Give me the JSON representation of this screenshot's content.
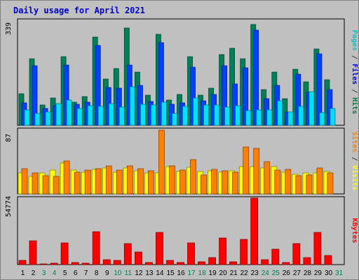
{
  "title": "Daily usage for April 2021",
  "chart_data": [
    {
      "type": "bar",
      "panel": "pages-files-hits",
      "x": [
        1,
        2,
        3,
        4,
        5,
        6,
        7,
        8,
        9,
        10,
        11,
        12,
        13,
        14,
        15,
        16,
        17,
        18,
        19,
        20,
        21,
        22,
        23,
        24,
        25,
        26,
        27,
        28,
        29,
        30,
        31
      ],
      "ymax_label": "339",
      "ylim": [
        0,
        339
      ],
      "axis_labels": [
        {
          "text": "Pages",
          "color": "#00c8c8"
        },
        {
          "text": " / ",
          "color": "#404040"
        },
        {
          "text": "Files",
          "color": "#0000ff"
        },
        {
          "text": " / ",
          "color": "#404040"
        },
        {
          "text": "Hits",
          "color": "#008040"
        }
      ],
      "series": [
        {
          "key": "hits",
          "color": "#00805a",
          "values": [
            103,
            217,
            66,
            90,
            224,
            76,
            95,
            288,
            152,
            186,
            318,
            175,
            99,
            298,
            82,
            100,
            224,
            98,
            121,
            231,
            252,
            217,
            330,
            117,
            173,
            86,
            183,
            141,
            250,
            148,
            0
          ]
        },
        {
          "key": "files",
          "color": "#0040ff",
          "values": [
            73,
            194,
            56,
            65,
            198,
            68,
            75,
            260,
            124,
            122,
            197,
            131,
            79,
            271,
            69,
            73,
            191,
            80,
            100,
            194,
            134,
            188,
            312,
            87,
            130,
            44,
            168,
            108,
            234,
            117,
            0
          ]
        },
        {
          "key": "pages",
          "color": "#00e0ff",
          "values": [
            51,
            39,
            44,
            70,
            82,
            56,
            63,
            61,
            72,
            59,
            125,
            69,
            67,
            76,
            38,
            62,
            89,
            67,
            67,
            59,
            63,
            47,
            51,
            50,
            80,
            44,
            61,
            111,
            42,
            55,
            0
          ]
        }
      ]
    },
    {
      "type": "bar",
      "panel": "sites-visits",
      "x": [
        1,
        2,
        3,
        4,
        5,
        6,
        7,
        8,
        9,
        10,
        11,
        12,
        13,
        14,
        15,
        16,
        17,
        18,
        19,
        20,
        21,
        22,
        23,
        24,
        25,
        26,
        27,
        28,
        29,
        30,
        31
      ],
      "ymax_label": "87",
      "ylim": [
        0,
        87
      ],
      "axis_labels": [
        {
          "text": "Sites",
          "color": "#ff8000"
        },
        {
          "text": " / ",
          "color": "#404040"
        },
        {
          "text": "Visits",
          "color": "#ffff00"
        }
      ],
      "series": [
        {
          "key": "visits",
          "color": "#ffff00",
          "values": [
            29,
            24,
            29,
            33,
            43,
            33,
            30,
            34,
            36,
            30,
            36,
            32,
            29,
            29,
            38,
            31,
            37,
            31,
            32,
            30,
            32,
            38,
            38,
            36,
            38,
            30,
            27,
            29,
            29,
            31,
            0
          ]
        },
        {
          "key": "sites",
          "color": "#ff8000",
          "values": [
            35,
            29,
            25,
            24,
            45,
            30,
            33,
            35,
            39,
            33,
            39,
            35,
            32,
            88,
            39,
            33,
            47,
            26,
            34,
            32,
            30,
            65,
            63,
            44,
            33,
            34,
            25,
            26,
            36,
            29,
            0
          ]
        }
      ]
    },
    {
      "type": "bar",
      "panel": "kbytes",
      "x": [
        1,
        2,
        3,
        4,
        5,
        6,
        7,
        8,
        9,
        10,
        11,
        12,
        13,
        14,
        15,
        16,
        17,
        18,
        19,
        20,
        21,
        22,
        23,
        24,
        25,
        26,
        27,
        28,
        29,
        30,
        31
      ],
      "ymax_label": "54774",
      "ylim": [
        0,
        54774
      ],
      "axis_labels": [
        {
          "text": "KBytes",
          "color": "#ff0000"
        }
      ],
      "series": [
        {
          "key": "kbytes",
          "color": "#ff0000",
          "values": [
            3800,
            20000,
            850,
            1300,
            18000,
            1900,
            1200,
            27500,
            4400,
            3800,
            17500,
            10500,
            1900,
            27000,
            3400,
            1700,
            18000,
            2400,
            6000,
            22500,
            2100,
            21000,
            56000,
            4400,
            13000,
            1900,
            17500,
            5900,
            27000,
            7800,
            0
          ]
        }
      ]
    }
  ],
  "x_labels": [
    {
      "day": "1",
      "weekend": false
    },
    {
      "day": "2",
      "weekend": false
    },
    {
      "day": "3",
      "weekend": true
    },
    {
      "day": "4",
      "weekend": true
    },
    {
      "day": "5",
      "weekend": false
    },
    {
      "day": "6",
      "weekend": false
    },
    {
      "day": "7",
      "weekend": false
    },
    {
      "day": "8",
      "weekend": false
    },
    {
      "day": "9",
      "weekend": false
    },
    {
      "day": "10",
      "weekend": true
    },
    {
      "day": "11",
      "weekend": true
    },
    {
      "day": "12",
      "weekend": false
    },
    {
      "day": "13",
      "weekend": false
    },
    {
      "day": "14",
      "weekend": false
    },
    {
      "day": "15",
      "weekend": false
    },
    {
      "day": "16",
      "weekend": false
    },
    {
      "day": "17",
      "weekend": true
    },
    {
      "day": "18",
      "weekend": true
    },
    {
      "day": "19",
      "weekend": false
    },
    {
      "day": "20",
      "weekend": false
    },
    {
      "day": "21",
      "weekend": false
    },
    {
      "day": "22",
      "weekend": false
    },
    {
      "day": "23",
      "weekend": false
    },
    {
      "day": "24",
      "weekend": true
    },
    {
      "day": "25",
      "weekend": true
    },
    {
      "day": "26",
      "weekend": false
    },
    {
      "day": "27",
      "weekend": false
    },
    {
      "day": "28",
      "weekend": false
    },
    {
      "day": "29",
      "weekend": false
    },
    {
      "day": "30",
      "weekend": false
    },
    {
      "day": "31",
      "weekend": true
    }
  ],
  "colors": {
    "weekday_label": "#000000",
    "weekend_label": "#00805a",
    "title": "#0000cc"
  }
}
